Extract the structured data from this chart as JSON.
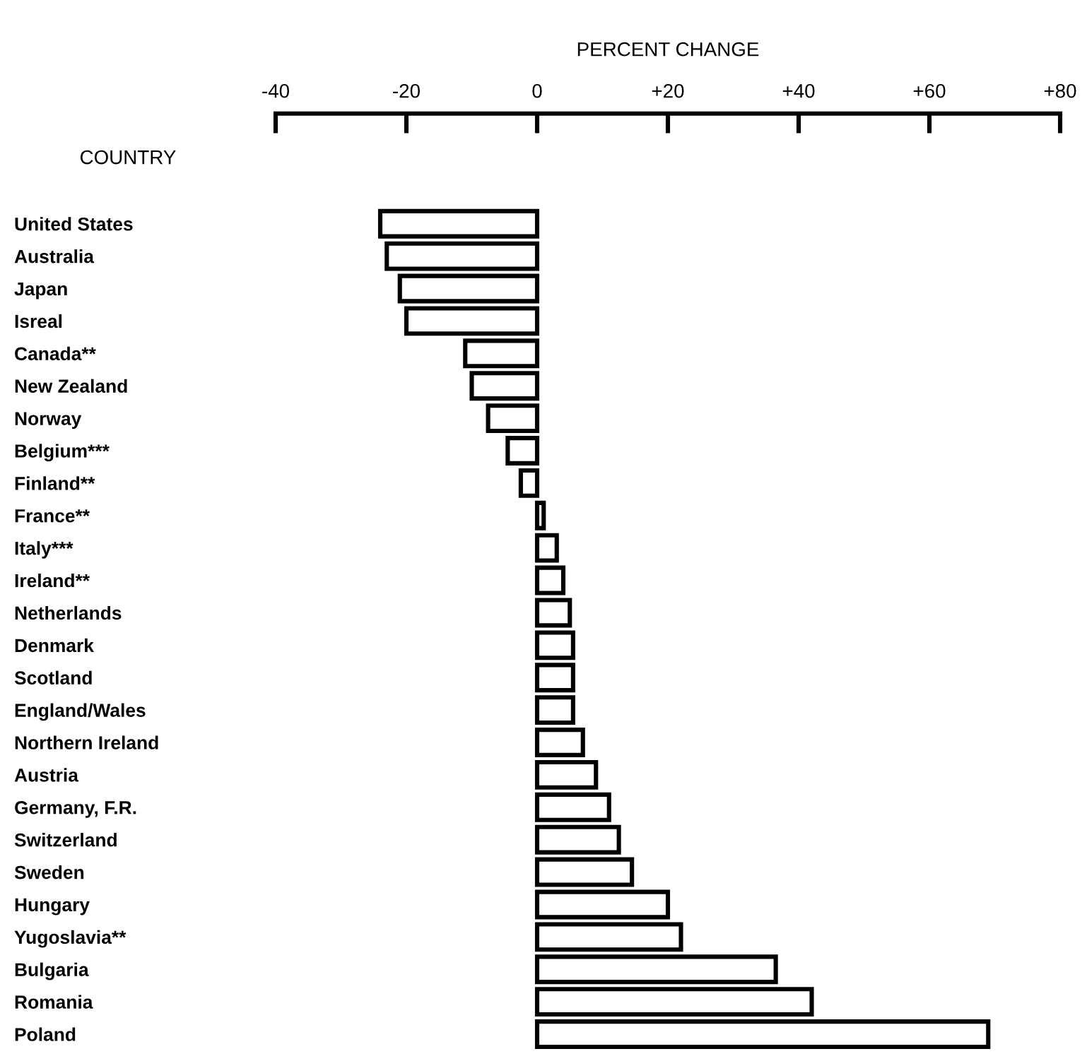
{
  "chart_data": {
    "type": "bar",
    "orientation": "horizontal",
    "xlabel": "PERCENT CHANGE",
    "ylabel": "COUNTRY",
    "categories": [
      "United States",
      "Australia",
      "Japan",
      "Isreal",
      "Canada**",
      "New Zealand",
      "Norway",
      "Belgium***",
      "Finland**",
      "France**",
      "Italy***",
      "Ireland**",
      "Netherlands",
      "Denmark",
      "Scotland",
      "England/Wales",
      "Northern Ireland",
      "Austria",
      "Germany, F.R.",
      "Switzerland",
      "Sweden",
      "Hungary",
      "Yugoslavia**",
      "Bulgaria",
      "Romania",
      "Poland"
    ],
    "values": [
      -24,
      -23,
      -21,
      -20,
      -11,
      -10,
      -7.5,
      -4.5,
      -2.5,
      1,
      3,
      4,
      5,
      5.5,
      5.5,
      5.5,
      7,
      9,
      11,
      12.5,
      14.5,
      20,
      22,
      36.5,
      42,
      69
    ],
    "color": "#ffffff",
    "xlim": [
      -40,
      80
    ],
    "xticks": [
      -40,
      -20,
      0,
      {
        "value": 20,
        "label": "+20"
      },
      {
        "value": 40,
        "label": "+40"
      },
      {
        "value": 60,
        "label": "+60"
      },
      {
        "value": 80,
        "label": "+80"
      }
    ],
    "grid": false,
    "legend": false
  }
}
